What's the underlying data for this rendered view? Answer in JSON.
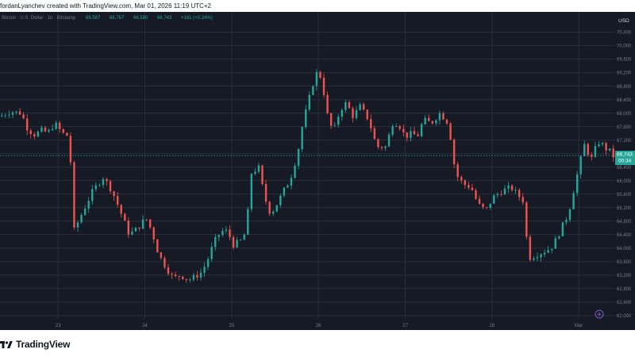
{
  "header": {
    "author_line": "fordanLyanchev created with TradingView.com, Mar 01, 2026 11:19 UTC+2"
  },
  "legend": {
    "symbol": "Bitcoin · U.S. Dollar · 1h · Bitstamp",
    "open": "66,587",
    "high": "66,767",
    "low": "66,580",
    "close": "66,743",
    "change": "+161 (+0.24%)"
  },
  "price_axis": {
    "currency": "USD",
    "last_price": "66,743",
    "countdown": "00:34"
  },
  "brand": {
    "name": "TradingView"
  },
  "colors": {
    "background": "#161a25",
    "grid": "#2a2e39",
    "up": "#26a69a",
    "down": "#ef5350",
    "axis_text": "#787b86",
    "last_price_bg": "#26a69a"
  },
  "chart_data": {
    "type": "candlestick",
    "title": "",
    "xlabel": "",
    "ylabel": "",
    "ylim": [
      61900,
      71000
    ],
    "y_ticks": [
      62000,
      62400,
      62800,
      63200,
      63600,
      64000,
      64400,
      64800,
      65200,
      65600,
      66000,
      66400,
      66800,
      67200,
      67600,
      68000,
      68400,
      68800,
      69200,
      69600,
      70000,
      70400
    ],
    "y_tick_labels": [
      "62,000",
      "62,400",
      "62,800",
      "63,200",
      "63,600",
      "64,000",
      "64,400",
      "64,800",
      "65,200",
      "65,600",
      "66,000",
      "66,400",
      "66,800",
      "67,200",
      "67,600",
      "68,000",
      "68,400",
      "68,800",
      "69,200",
      "69,600",
      "70,000",
      "70,400"
    ],
    "x_ticks": [
      {
        "label": "23",
        "pos": 1.0
      },
      {
        "label": "24",
        "pos": 2.0
      },
      {
        "label": "25",
        "pos": 3.0
      },
      {
        "label": "26",
        "pos": 4.0
      },
      {
        "label": "27",
        "pos": 5.0
      },
      {
        "label": "28",
        "pos": 6.0
      },
      {
        "label": "Mar",
        "pos": 7.0
      }
    ],
    "x_range": [
      0.33,
      7.42
    ],
    "price_path": [
      [
        0.33,
        67900
      ],
      [
        0.45,
        68050
      ],
      [
        0.58,
        68000
      ],
      [
        0.63,
        67600
      ],
      [
        0.72,
        67350
      ],
      [
        0.82,
        67500
      ],
      [
        0.88,
        67400
      ],
      [
        0.96,
        67700
      ],
      [
        1.05,
        67400
      ],
      [
        1.13,
        67300
      ],
      [
        1.18,
        64500
      ],
      [
        1.27,
        65000
      ],
      [
        1.4,
        65700
      ],
      [
        1.52,
        66100
      ],
      [
        1.62,
        65700
      ],
      [
        1.7,
        65200
      ],
      [
        1.82,
        64400
      ],
      [
        1.92,
        64600
      ],
      [
        2.01,
        64900
      ],
      [
        2.08,
        64500
      ],
      [
        2.16,
        63800
      ],
      [
        2.25,
        63400
      ],
      [
        2.33,
        63100
      ],
      [
        2.41,
        63200
      ],
      [
        2.5,
        63050
      ],
      [
        2.58,
        63150
      ],
      [
        2.66,
        63300
      ],
      [
        2.73,
        63700
      ],
      [
        2.8,
        64200
      ],
      [
        2.88,
        64500
      ],
      [
        2.95,
        64500
      ],
      [
        3.02,
        64100
      ],
      [
        3.1,
        64200
      ],
      [
        3.17,
        64500
      ],
      [
        3.22,
        66200
      ],
      [
        3.31,
        66400
      ],
      [
        3.38,
        65500
      ],
      [
        3.45,
        65000
      ],
      [
        3.52,
        65300
      ],
      [
        3.62,
        65800
      ],
      [
        3.67,
        66000
      ],
      [
        3.76,
        66800
      ],
      [
        3.82,
        67700
      ],
      [
        3.88,
        68300
      ],
      [
        3.95,
        69000
      ],
      [
        4.0,
        69300
      ],
      [
        4.05,
        68800
      ],
      [
        4.12,
        67700
      ],
      [
        4.18,
        67500
      ],
      [
        4.25,
        68100
      ],
      [
        4.32,
        68300
      ],
      [
        4.4,
        67900
      ],
      [
        4.48,
        68200
      ],
      [
        4.58,
        67800
      ],
      [
        4.67,
        67000
      ],
      [
        4.78,
        67000
      ],
      [
        4.85,
        67700
      ],
      [
        4.92,
        67700
      ],
      [
        5.0,
        67300
      ],
      [
        5.08,
        67400
      ],
      [
        5.14,
        67300
      ],
      [
        5.21,
        67800
      ],
      [
        5.3,
        67700
      ],
      [
        5.4,
        68000
      ],
      [
        5.5,
        67700
      ],
      [
        5.58,
        66200
      ],
      [
        5.67,
        65900
      ],
      [
        5.76,
        65800
      ],
      [
        5.84,
        65300
      ],
      [
        5.93,
        65100
      ],
      [
        6.01,
        65500
      ],
      [
        6.12,
        65700
      ],
      [
        6.22,
        65800
      ],
      [
        6.29,
        65600
      ],
      [
        6.36,
        65400
      ],
      [
        6.42,
        63700
      ],
      [
        6.51,
        63800
      ],
      [
        6.6,
        63900
      ],
      [
        6.68,
        64000
      ],
      [
        6.75,
        64300
      ],
      [
        6.82,
        64700
      ],
      [
        6.88,
        65000
      ],
      [
        6.94,
        65700
      ],
      [
        7.02,
        66600
      ],
      [
        7.07,
        67100
      ],
      [
        7.14,
        66600
      ],
      [
        7.2,
        67000
      ],
      [
        7.25,
        67200
      ],
      [
        7.3,
        66900
      ],
      [
        7.34,
        67000
      ],
      [
        7.38,
        66700
      ],
      [
        7.42,
        66743
      ]
    ]
  }
}
